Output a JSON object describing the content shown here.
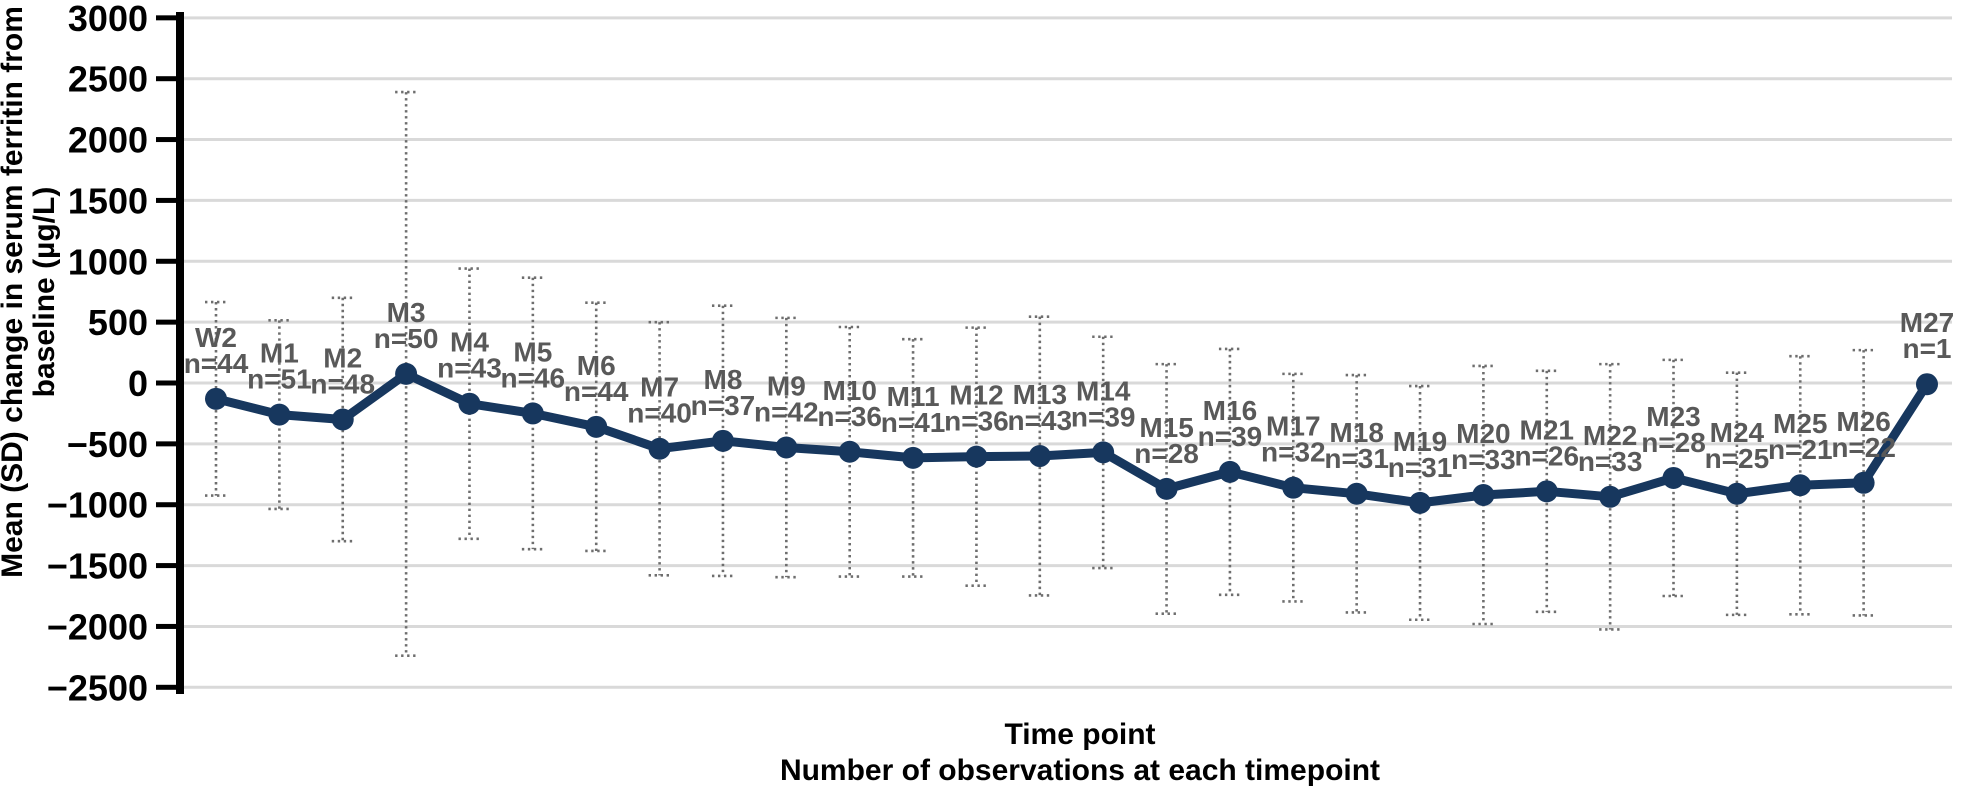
{
  "figure": {
    "y_axis_title_line1": "Mean (SD) change in serum ferritin from",
    "y_axis_title_line2": "baseline (µg/L)",
    "x_axis_title_line1": "Time point",
    "x_axis_title_line2": "Number of observations at each timepoint"
  },
  "colors": {
    "line": "#17375E",
    "marker": "#17375E",
    "error_bar": "#6e6e6e",
    "point_label": "#595959",
    "gridline": "#D9D9D9",
    "axis": "#000000",
    "background": "#FFFFFF"
  },
  "chart_data": {
    "type": "line",
    "title": "",
    "xlabel": [
      "Time point",
      "Number of observations at each timepoint"
    ],
    "ylabel": "Mean (SD) change in serum ferritin from baseline (µg/L)",
    "ylim": [
      -2500,
      3000
    ],
    "y_tick_step": 500,
    "grid": "horizontal",
    "legend": "none",
    "error_bars": "mean ± SD, dotted whiskers with caps",
    "y_ticks": [
      {
        "value": 3000,
        "label": "3000"
      },
      {
        "value": 2500,
        "label": "2500"
      },
      {
        "value": 2000,
        "label": "2000"
      },
      {
        "value": 1500,
        "label": "1500"
      },
      {
        "value": 1000,
        "label": "1000"
      },
      {
        "value": 500,
        "label": "500"
      },
      {
        "value": 0,
        "label": "0"
      },
      {
        "value": -500,
        "label": "−500"
      },
      {
        "value": -1000,
        "label": "−1000"
      },
      {
        "value": -1500,
        "label": "−1500"
      },
      {
        "value": -2000,
        "label": "−2000"
      },
      {
        "value": -2500,
        "label": "−2500"
      }
    ],
    "points": [
      {
        "label": "W2",
        "n_label": "n=44",
        "n": 44,
        "mean": -130,
        "sd": 795
      },
      {
        "label": "M1",
        "n_label": "n=51",
        "n": 51,
        "mean": -260,
        "sd": 775
      },
      {
        "label": "M2",
        "n_label": "n=48",
        "n": 48,
        "mean": -300,
        "sd": 1000
      },
      {
        "label": "M3",
        "n_label": "n=50",
        "n": 50,
        "mean": 75,
        "sd": 2315
      },
      {
        "label": "M4",
        "n_label": "n=43",
        "n": 43,
        "mean": -170,
        "sd": 1110
      },
      {
        "label": "M5",
        "n_label": "n=46",
        "n": 46,
        "mean": -250,
        "sd": 1115
      },
      {
        "label": "M6",
        "n_label": "n=44",
        "n": 44,
        "mean": -360,
        "sd": 1020
      },
      {
        "label": "M7",
        "n_label": "n=40",
        "n": 40,
        "mean": -540,
        "sd": 1040
      },
      {
        "label": "M8",
        "n_label": "n=37",
        "n": 37,
        "mean": -475,
        "sd": 1110
      },
      {
        "label": "M9",
        "n_label": "n=42",
        "n": 42,
        "mean": -530,
        "sd": 1065
      },
      {
        "label": "M10",
        "n_label": "n=36",
        "n": 36,
        "mean": -565,
        "sd": 1025
      },
      {
        "label": "M11",
        "n_label": "n=41",
        "n": 41,
        "mean": -615,
        "sd": 975
      },
      {
        "label": "M12",
        "n_label": "n=36",
        "n": 36,
        "mean": -605,
        "sd": 1060
      },
      {
        "label": "M13",
        "n_label": "n=43",
        "n": 43,
        "mean": -600,
        "sd": 1145
      },
      {
        "label": "M14",
        "n_label": "n=39",
        "n": 39,
        "mean": -570,
        "sd": 950
      },
      {
        "label": "M15",
        "n_label": "n=28",
        "n": 28,
        "mean": -870,
        "sd": 1025
      },
      {
        "label": "M16",
        "n_label": "n=39",
        "n": 39,
        "mean": -730,
        "sd": 1010
      },
      {
        "label": "M17",
        "n_label": "n=32",
        "n": 32,
        "mean": -860,
        "sd": 935
      },
      {
        "label": "M18",
        "n_label": "n=31",
        "n": 31,
        "mean": -910,
        "sd": 975
      },
      {
        "label": "M19",
        "n_label": "n=31",
        "n": 31,
        "mean": -985,
        "sd": 960
      },
      {
        "label": "M20",
        "n_label": "n=33",
        "n": 33,
        "mean": -920,
        "sd": 1060
      },
      {
        "label": "M21",
        "n_label": "n=26",
        "n": 26,
        "mean": -890,
        "sd": 990
      },
      {
        "label": "M22",
        "n_label": "n=33",
        "n": 33,
        "mean": -935,
        "sd": 1090
      },
      {
        "label": "M23",
        "n_label": "n=28",
        "n": 28,
        "mean": -780,
        "sd": 970
      },
      {
        "label": "M24",
        "n_label": "n=25",
        "n": 25,
        "mean": -910,
        "sd": 995
      },
      {
        "label": "M25",
        "n_label": "n=21",
        "n": 21,
        "mean": -840,
        "sd": 1060
      },
      {
        "label": "M26",
        "n_label": "n=22",
        "n": 22,
        "mean": -820,
        "sd": 1090
      },
      {
        "label": "M27",
        "n_label": "n=1",
        "n": 1,
        "mean": -10,
        "sd": null
      }
    ]
  }
}
